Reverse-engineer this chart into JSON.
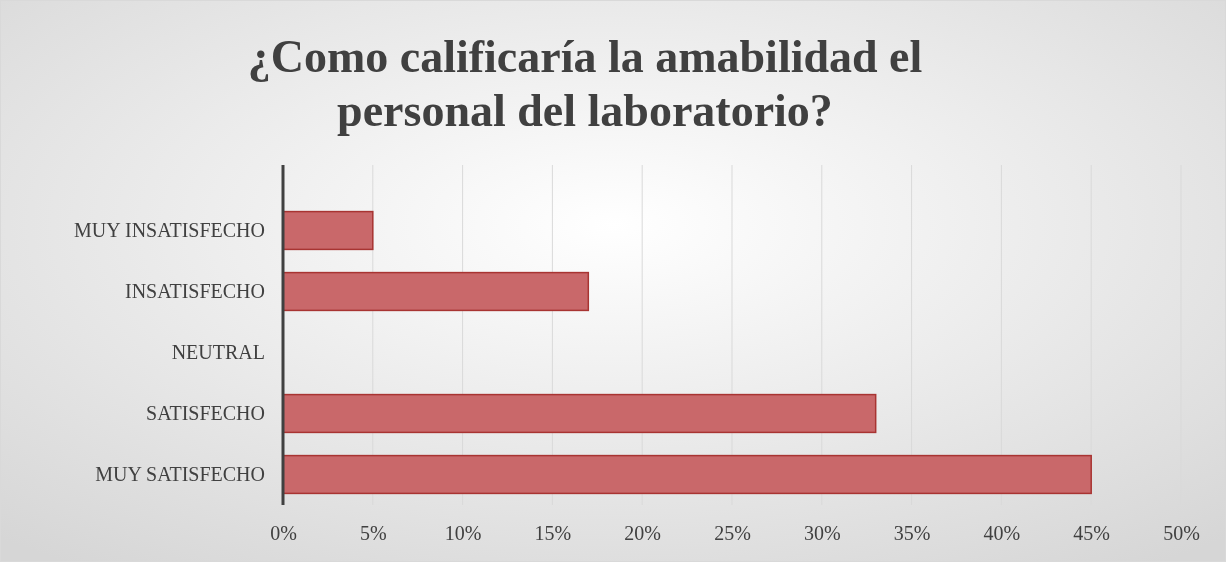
{
  "chart_data": {
    "type": "bar",
    "orientation": "horizontal",
    "title": "¿Como calificaría la amabilidad el personal del laboratorio?",
    "categories": [
      "MUY INSATISFECHO",
      "INSATISFECHO",
      "NEUTRAL",
      "SATISFECHO",
      "MUY SATISFECHO"
    ],
    "values": [
      5,
      17,
      0,
      33,
      45
    ],
    "color": "#c9686a",
    "xlim": [
      0,
      50
    ],
    "xticks": [
      {
        "value": 0,
        "label": "0%"
      },
      {
        "value": 5,
        "label": "5%"
      },
      {
        "value": 10,
        "label": "10%"
      },
      {
        "value": 15,
        "label": "15%"
      },
      {
        "value": 20,
        "label": "20%"
      },
      {
        "value": 25,
        "label": "25%"
      },
      {
        "value": 30,
        "label": "30%"
      },
      {
        "value": 35,
        "label": "35%"
      },
      {
        "value": 40,
        "label": "40%"
      },
      {
        "value": 45,
        "label": "45%"
      },
      {
        "value": 50,
        "label": "50%"
      }
    ],
    "grid": "x"
  }
}
